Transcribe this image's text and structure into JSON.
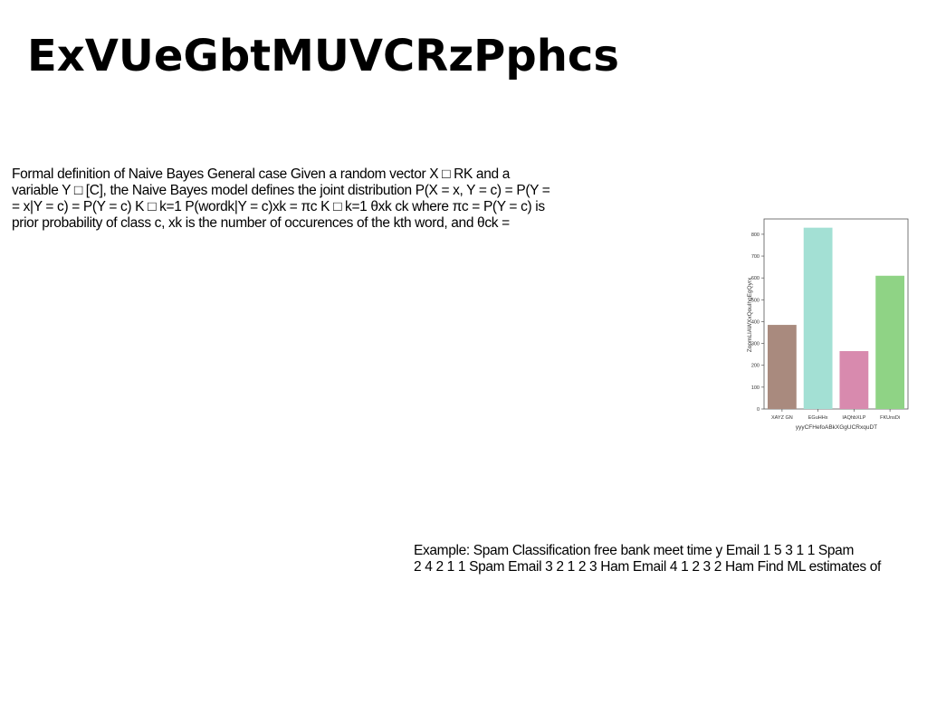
{
  "title": "ExVUeGbtMUVCRzPphcs",
  "paragraphs": {
    "definition": "Formal definition of Naive Bayes General case Given a random vector X □ RK and a\nvariable Y □ [C], the Naive Bayes model defines the joint distribution P(X = x, Y = c) = P(Y =\n= x|Y = c) = P(Y = c) K □ k=1 P(wordk|Y = c)xk = πc K □ k=1 θxk ck where πc = P(Y = c) is\nprior probability of class c, xk is the number of occurences of the kth word, and θck =",
    "example": "Example: Spam Classification free bank meet time y Email 1 5 3 1 1 Spam\n2 4 2 1 1 Spam Email 3 2 1 2 3 Ham Email 4 1 2 3 2 Ham Find ML estimates of"
  },
  "chart_data": {
    "type": "bar",
    "title": "",
    "categories": [
      "XAYZ GN",
      "EGuHHx",
      "IAQhbXLP",
      "FKUnsDi"
    ],
    "values": [
      385,
      830,
      265,
      610
    ],
    "colors": [
      "#a98a7e",
      "#a3e0d4",
      "#d88aae",
      "#8fd385"
    ],
    "xlabel": "yyyCFHefoABkXGgUCRxquDT",
    "ylabel": "ZopmLIAWXxQoulhgEgQyrx",
    "ylim": [
      0,
      870
    ],
    "yticks": [
      0,
      100,
      200,
      300,
      400,
      500,
      600,
      700,
      800
    ],
    "grid": false
  }
}
